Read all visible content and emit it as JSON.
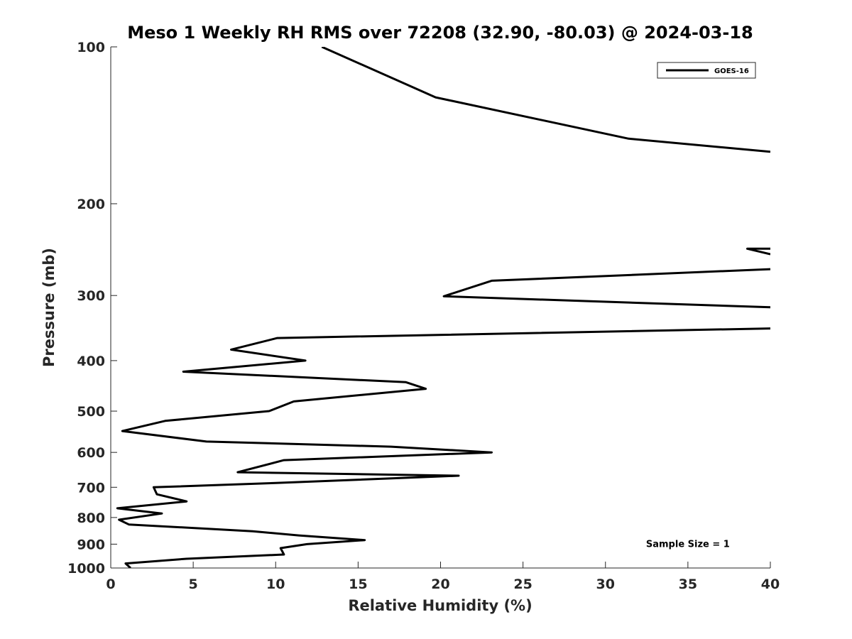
{
  "chart_data": {
    "type": "line",
    "title": "Meso 1 Weekly RH RMS over 72208 (32.90, -80.03) @ 2024-03-18",
    "xlabel": "Relative Humidity (%)",
    "ylabel": "Pressure (mb)",
    "xlim": [
      0,
      40
    ],
    "ylim": [
      100,
      1000
    ],
    "y_scale": "log",
    "y_reversed": true,
    "x_ticks": [
      0,
      5,
      10,
      15,
      20,
      25,
      30,
      35,
      40
    ],
    "x_tick_labels": [
      "0",
      "5",
      "10",
      "15",
      "20",
      "25",
      "30",
      "35",
      "40"
    ],
    "y_ticks": [
      100,
      200,
      300,
      400,
      500,
      600,
      700,
      800,
      900,
      1000
    ],
    "y_tick_labels": [
      "100",
      "200",
      "300",
      "400",
      "500",
      "600",
      "700",
      "800",
      "900",
      "1000"
    ],
    "grid": false,
    "legend_position": "top-right",
    "series": [
      {
        "name": "GOES-16",
        "color": "#000000",
        "points": [
          [
            12.8,
            100
          ],
          [
            19.7,
            125
          ],
          [
            31.4,
            150
          ],
          [
            40.0,
            159
          ],
          [
            null,
            null
          ],
          [
            40.0,
            250
          ],
          [
            38.6,
            244
          ],
          [
            40.0,
            244
          ],
          [
            null,
            null
          ],
          [
            40.0,
            267
          ],
          [
            23.1,
            281
          ],
          [
            20.2,
            301
          ],
          [
            40.0,
            316
          ],
          [
            null,
            null
          ],
          [
            40.0,
            347
          ],
          [
            10.1,
            362
          ],
          [
            7.3,
            381
          ],
          [
            11.8,
            400
          ],
          [
            4.4,
            420
          ],
          [
            17.9,
            440
          ],
          [
            19.1,
            453
          ],
          [
            11.1,
            479
          ],
          [
            9.6,
            500
          ],
          [
            3.3,
            522
          ],
          [
            0.7,
            546
          ],
          [
            5.8,
            572
          ],
          [
            17.0,
            585
          ],
          [
            23.1,
            600
          ],
          [
            10.5,
            621
          ],
          [
            7.7,
            655
          ],
          [
            21.1,
            665
          ],
          [
            10.0,
            687
          ],
          [
            2.6,
            700
          ],
          [
            2.8,
            722
          ],
          [
            4.6,
            745
          ],
          [
            0.4,
            768
          ],
          [
            3.1,
            786
          ],
          [
            0.5,
            808
          ],
          [
            1.1,
            825
          ],
          [
            8.6,
            850
          ],
          [
            11.4,
            866
          ],
          [
            15.4,
            884
          ],
          [
            11.9,
            900
          ],
          [
            10.3,
            916
          ],
          [
            10.5,
            942
          ],
          [
            4.6,
            960
          ],
          [
            0.9,
            980
          ],
          [
            1.2,
            1000
          ]
        ]
      }
    ],
    "annotations": [
      {
        "text": "Sample Size = 1",
        "x": 35,
        "y": 912
      }
    ]
  }
}
